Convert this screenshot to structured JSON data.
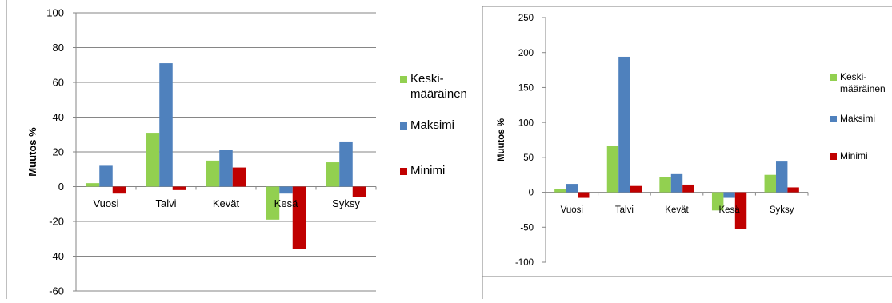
{
  "series_colors": {
    "Keskimaarainen": "#92d050",
    "Maksimi": "#4f81bd",
    "Minimi": "#c00000"
  },
  "chart_data": [
    {
      "type": "bar",
      "ylabel": "Muutos %",
      "ylim": [
        -60,
        100
      ],
      "yticks": [
        100,
        80,
        60,
        40,
        20,
        0,
        -20,
        -40,
        -60
      ],
      "grid": true,
      "legend_position": "right",
      "categories": [
        "Vuosi",
        "Talvi",
        "Kevät",
        "Kesä",
        "Syksy"
      ],
      "series": [
        {
          "name": "Keski-määräinen",
          "legend_lines": [
            "Keski-",
            "määräinen"
          ],
          "color": "#92d050",
          "values": [
            2,
            31,
            15,
            -19,
            14
          ]
        },
        {
          "name": "Maksimi",
          "legend_lines": [
            "Maksimi"
          ],
          "color": "#4f81bd",
          "values": [
            12,
            71,
            21,
            -4,
            26
          ]
        },
        {
          "name": "Minimi",
          "legend_lines": [
            "Minimi"
          ],
          "color": "#c00000",
          "values": [
            -4,
            -2,
            11,
            -36,
            -6
          ]
        }
      ]
    },
    {
      "type": "bar",
      "ylabel": "Muutos %",
      "ylim": [
        -100,
        250
      ],
      "yticks": [
        250,
        200,
        150,
        100,
        50,
        0,
        -50,
        -100
      ],
      "grid": false,
      "legend_position": "right",
      "categories": [
        "Vuosi",
        "Talvi",
        "Kevät",
        "Kesä",
        "Syksy"
      ],
      "series": [
        {
          "name": "Keski-määräinen",
          "legend_lines": [
            "Keski-",
            "määräinen"
          ],
          "color": "#92d050",
          "values": [
            5,
            67,
            22,
            -26,
            25
          ]
        },
        {
          "name": "Maksimi",
          "legend_lines": [
            "Maksimi"
          ],
          "color": "#4f81bd",
          "values": [
            12,
            194,
            26,
            -8,
            44
          ]
        },
        {
          "name": "Minimi",
          "legend_lines": [
            "Minimi"
          ],
          "color": "#c00000",
          "values": [
            -8,
            9,
            11,
            -52,
            7
          ]
        }
      ]
    }
  ]
}
